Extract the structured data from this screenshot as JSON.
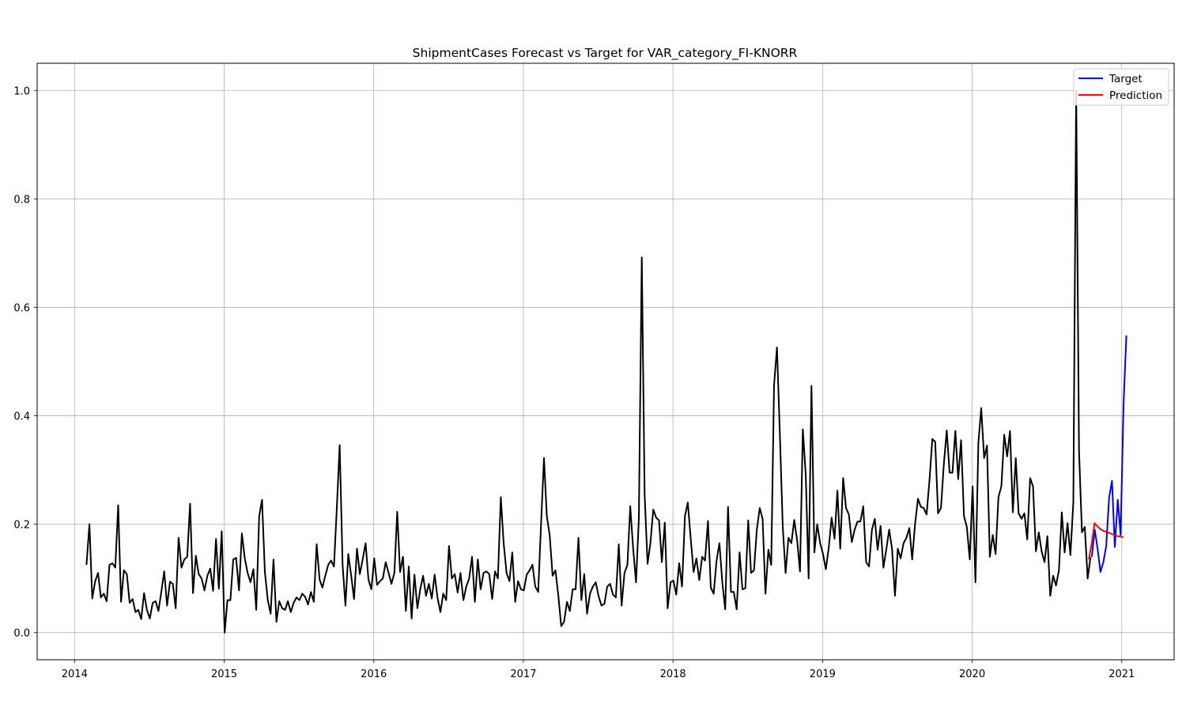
{
  "chart_data": {
    "type": "line",
    "title": "ShipmentCases Forecast vs Target for VAR_category_FI-KNORR",
    "xlabel": "",
    "ylabel": "",
    "xlim": [
      2013.75,
      2021.35
    ],
    "ylim": [
      -0.05,
      1.05
    ],
    "x_ticks": [
      2014,
      2015,
      2016,
      2017,
      2018,
      2019,
      2020,
      2021
    ],
    "x_tick_labels": [
      "2014",
      "2015",
      "2016",
      "2017",
      "2018",
      "2019",
      "2020",
      "2021"
    ],
    "y_ticks": [
      0.0,
      0.2,
      0.4,
      0.6,
      0.8,
      1.0
    ],
    "y_tick_labels": [
      "0.0",
      "0.2",
      "0.4",
      "0.6",
      "0.8",
      "1.0"
    ],
    "grid": true,
    "legend": {
      "position": "upper-right",
      "entries": [
        "Target",
        "Prediction"
      ]
    },
    "series": [
      {
        "role": "history",
        "color": "#000000",
        "x_start": 2014.08,
        "x_step": 0.01923,
        "values": [
          0.125,
          0.2,
          0.063,
          0.095,
          0.11,
          0.065,
          0.072,
          0.058,
          0.125,
          0.128,
          0.12,
          0.235,
          0.057,
          0.115,
          0.108,
          0.055,
          0.062,
          0.038,
          0.042,
          0.025,
          0.073,
          0.042,
          0.026,
          0.055,
          0.058,
          0.04,
          0.075,
          0.113,
          0.05,
          0.094,
          0.09,
          0.045,
          0.175,
          0.12,
          0.135,
          0.14,
          0.238,
          0.073,
          0.142,
          0.108,
          0.1,
          0.078,
          0.105,
          0.118,
          0.077,
          0.173,
          0.081,
          0.187,
          0.0,
          0.06,
          0.06,
          0.135,
          0.138,
          0.078,
          0.183,
          0.137,
          0.11,
          0.093,
          0.117,
          0.042,
          0.215,
          0.245,
          0.112,
          0.06,
          0.035,
          0.135,
          0.02,
          0.058,
          0.045,
          0.042,
          0.058,
          0.038,
          0.055,
          0.065,
          0.06,
          0.072,
          0.066,
          0.052,
          0.075,
          0.057,
          0.163,
          0.098,
          0.083,
          0.105,
          0.125,
          0.133,
          0.122,
          0.23,
          0.346,
          0.125,
          0.05,
          0.145,
          0.105,
          0.062,
          0.155,
          0.108,
          0.135,
          0.165,
          0.098,
          0.08,
          0.137,
          0.088,
          0.095,
          0.1,
          0.13,
          0.11,
          0.09,
          0.11,
          0.223,
          0.112,
          0.14,
          0.04,
          0.122,
          0.026,
          0.107,
          0.045,
          0.08,
          0.105,
          0.068,
          0.09,
          0.063,
          0.107,
          0.065,
          0.038,
          0.072,
          0.06,
          0.16,
          0.1,
          0.108,
          0.074,
          0.11,
          0.06,
          0.085,
          0.1,
          0.14,
          0.057,
          0.135,
          0.08,
          0.11,
          0.113,
          0.108,
          0.062,
          0.113,
          0.1,
          0.25,
          0.165,
          0.11,
          0.095,
          0.148,
          0.057,
          0.095,
          0.08,
          0.078,
          0.107,
          0.115,
          0.125,
          0.085,
          0.075,
          0.2,
          0.322,
          0.215,
          0.18,
          0.105,
          0.115,
          0.068,
          0.012,
          0.02,
          0.057,
          0.04,
          0.08,
          0.08,
          0.175,
          0.06,
          0.108,
          0.035,
          0.072,
          0.085,
          0.093,
          0.067,
          0.05,
          0.053,
          0.085,
          0.09,
          0.07,
          0.065,
          0.163,
          0.05,
          0.11,
          0.125,
          0.233,
          0.155,
          0.093,
          0.21,
          0.692,
          0.255,
          0.127,
          0.165,
          0.227,
          0.212,
          0.207,
          0.13,
          0.203,
          0.045,
          0.093,
          0.096,
          0.07,
          0.128,
          0.085,
          0.215,
          0.24,
          0.175,
          0.112,
          0.137,
          0.097,
          0.14,
          0.133,
          0.206,
          0.083,
          0.072,
          0.133,
          0.165,
          0.092,
          0.043,
          0.232,
          0.075,
          0.075,
          0.043,
          0.148,
          0.08,
          0.082,
          0.207,
          0.11,
          0.115,
          0.19,
          0.23,
          0.21,
          0.072,
          0.153,
          0.125,
          0.457,
          0.526,
          0.368,
          0.195,
          0.11,
          0.175,
          0.165,
          0.208,
          0.17,
          0.113,
          0.375,
          0.29,
          0.1,
          0.455,
          0.148,
          0.2,
          0.165,
          0.145,
          0.117,
          0.157,
          0.212,
          0.173,
          0.262,
          0.155,
          0.285,
          0.23,
          0.218,
          0.167,
          0.19,
          0.205,
          0.205,
          0.233,
          0.13,
          0.122,
          0.19,
          0.21,
          0.153,
          0.197,
          0.12,
          0.153,
          0.19,
          0.155,
          0.068,
          0.155,
          0.137,
          0.165,
          0.175,
          0.193,
          0.135,
          0.2,
          0.247,
          0.232,
          0.23,
          0.218,
          0.28,
          0.357,
          0.352,
          0.22,
          0.23,
          0.31,
          0.373,
          0.295,
          0.295,
          0.372,
          0.283,
          0.355,
          0.215,
          0.195,
          0.135,
          0.27,
          0.093,
          0.35,
          0.414,
          0.322,
          0.345,
          0.14,
          0.18,
          0.145,
          0.25,
          0.27,
          0.365,
          0.325,
          0.372,
          0.222,
          0.322,
          0.22,
          0.21,
          0.22,
          0.172,
          0.285,
          0.27,
          0.15,
          0.185,
          0.15,
          0.13,
          0.178,
          0.068,
          0.105,
          0.087,
          0.115,
          0.222,
          0.148,
          0.202,
          0.143,
          0.24,
          1.0,
          0.335,
          0.185,
          0.195,
          0.1,
          0.14
        ]
      },
      {
        "name": "Target",
        "color": "#0000ff",
        "x_start": 2020.8,
        "x_step": 0.01923,
        "values": [
          0.14,
          0.19,
          0.155,
          0.112,
          0.13,
          0.16,
          0.25,
          0.28,
          0.158,
          0.245,
          0.18,
          0.42,
          0.548
        ]
      },
      {
        "name": "Prediction",
        "color": "#ff0000",
        "x_start": 2020.78,
        "x_step": 0.01923,
        "values": [
          0.135,
          0.165,
          0.202,
          0.196,
          0.191,
          0.188,
          0.186,
          0.184,
          0.182,
          0.18,
          0.178,
          0.177,
          0.176
        ]
      }
    ]
  }
}
